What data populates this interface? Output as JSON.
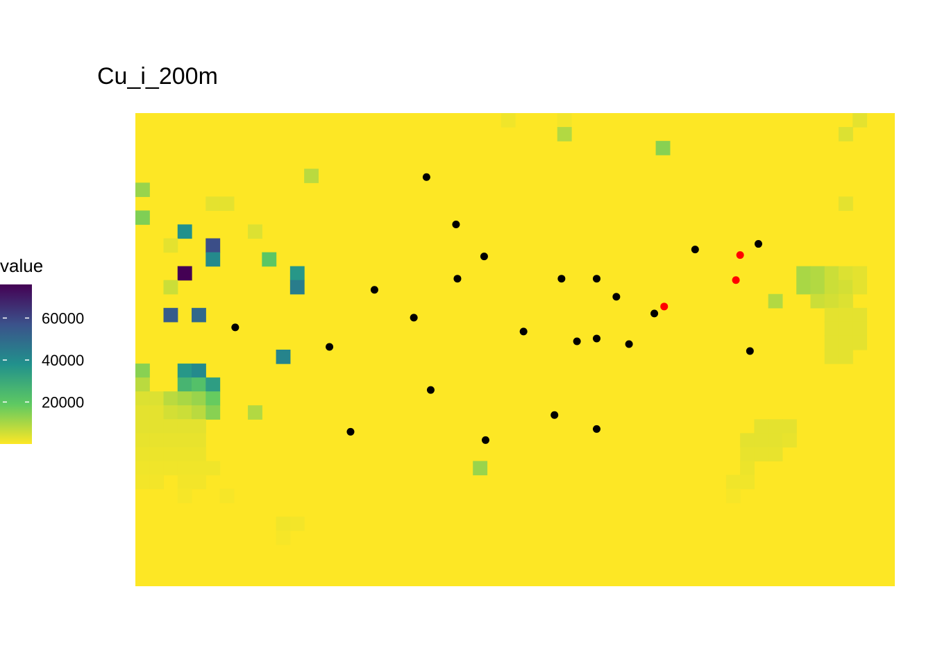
{
  "chart_data": {
    "type": "heatmap",
    "title": "Cu_i_200m",
    "legend": {
      "title": "value",
      "ticks": [
        20000,
        40000,
        60000
      ],
      "tick_labels": [
        "20000",
        "40000",
        "60000"
      ],
      "range": [
        0,
        76000
      ],
      "palette": "viridis-reversed",
      "placement": "left"
    },
    "grid": {
      "cols": 54,
      "rows": 34,
      "background_value": 0
    },
    "cells": [
      [
        26,
        0,
        1500
      ],
      [
        30,
        0,
        1200
      ],
      [
        51,
        0,
        3000
      ],
      [
        30,
        1,
        9000
      ],
      [
        50,
        1,
        4000
      ],
      [
        37,
        2,
        14000
      ],
      [
        12,
        4,
        8000
      ],
      [
        0,
        5,
        12000
      ],
      [
        5,
        6,
        3000
      ],
      [
        6,
        6,
        3000
      ],
      [
        50,
        6,
        3000
      ],
      [
        0,
        7,
        15000
      ],
      [
        3,
        8,
        38000
      ],
      [
        8,
        8,
        4000
      ],
      [
        2,
        9,
        3000
      ],
      [
        5,
        9,
        58000
      ],
      [
        5,
        10,
        40000
      ],
      [
        9,
        10,
        20000
      ],
      [
        3,
        11,
        76000
      ],
      [
        11,
        11,
        36000
      ],
      [
        47,
        11,
        10000
      ],
      [
        48,
        11,
        9000
      ],
      [
        49,
        11,
        6000
      ],
      [
        50,
        11,
        4000
      ],
      [
        51,
        11,
        3000
      ],
      [
        2,
        12,
        6000
      ],
      [
        11,
        12,
        44000
      ],
      [
        47,
        12,
        10000
      ],
      [
        48,
        12,
        9000
      ],
      [
        49,
        12,
        6000
      ],
      [
        50,
        12,
        5000
      ],
      [
        51,
        12,
        3000
      ],
      [
        45,
        13,
        9000
      ],
      [
        48,
        13,
        6000
      ],
      [
        49,
        13,
        5000
      ],
      [
        50,
        13,
        4000
      ],
      [
        2,
        14,
        54000
      ],
      [
        4,
        14,
        50000
      ],
      [
        49,
        14,
        3000
      ],
      [
        50,
        14,
        3000
      ],
      [
        51,
        14,
        3000
      ],
      [
        49,
        15,
        3000
      ],
      [
        50,
        15,
        3000
      ],
      [
        51,
        15,
        3000
      ],
      [
        49,
        16,
        3000
      ],
      [
        50,
        16,
        3000
      ],
      [
        51,
        16,
        3000
      ],
      [
        10,
        17,
        42000
      ],
      [
        49,
        17,
        3000
      ],
      [
        50,
        17,
        3000
      ],
      [
        0,
        18,
        14000
      ],
      [
        3,
        18,
        36000
      ],
      [
        4,
        18,
        40000
      ],
      [
        0,
        19,
        8000
      ],
      [
        3,
        19,
        26000
      ],
      [
        4,
        19,
        22000
      ],
      [
        5,
        19,
        34000
      ],
      [
        0,
        20,
        4000
      ],
      [
        1,
        20,
        4000
      ],
      [
        2,
        20,
        8000
      ],
      [
        3,
        20,
        10000
      ],
      [
        4,
        20,
        12000
      ],
      [
        5,
        20,
        18000
      ],
      [
        0,
        21,
        3000
      ],
      [
        1,
        21,
        3000
      ],
      [
        2,
        21,
        5000
      ],
      [
        3,
        21,
        6000
      ],
      [
        4,
        21,
        8000
      ],
      [
        5,
        21,
        14000
      ],
      [
        8,
        21,
        9000
      ],
      [
        0,
        22,
        3000
      ],
      [
        1,
        22,
        3000
      ],
      [
        2,
        22,
        3000
      ],
      [
        3,
        22,
        3000
      ],
      [
        4,
        22,
        3000
      ],
      [
        44,
        22,
        3000
      ],
      [
        45,
        22,
        3000
      ],
      [
        46,
        22,
        3000
      ],
      [
        0,
        23,
        2500
      ],
      [
        1,
        23,
        2500
      ],
      [
        2,
        23,
        2500
      ],
      [
        3,
        23,
        2500
      ],
      [
        4,
        23,
        2500
      ],
      [
        43,
        23,
        3000
      ],
      [
        44,
        23,
        3000
      ],
      [
        45,
        23,
        3000
      ],
      [
        46,
        23,
        2500
      ],
      [
        0,
        24,
        2000
      ],
      [
        1,
        24,
        2000
      ],
      [
        2,
        24,
        2000
      ],
      [
        3,
        24,
        2000
      ],
      [
        4,
        24,
        2000
      ],
      [
        43,
        24,
        2500
      ],
      [
        44,
        24,
        2500
      ],
      [
        45,
        24,
        2500
      ],
      [
        0,
        25,
        1500
      ],
      [
        1,
        25,
        1500
      ],
      [
        2,
        25,
        1500
      ],
      [
        3,
        25,
        1500
      ],
      [
        4,
        25,
        1500
      ],
      [
        5,
        25,
        1500
      ],
      [
        24,
        25,
        12000
      ],
      [
        43,
        25,
        2000
      ],
      [
        0,
        26,
        1200
      ],
      [
        1,
        26,
        1200
      ],
      [
        3,
        26,
        1200
      ],
      [
        4,
        26,
        1200
      ],
      [
        42,
        26,
        1500
      ],
      [
        43,
        26,
        1500
      ],
      [
        3,
        27,
        800
      ],
      [
        6,
        27,
        800
      ],
      [
        42,
        27,
        800
      ],
      [
        10,
        29,
        1500
      ],
      [
        11,
        29,
        1200
      ],
      [
        10,
        30,
        800
      ]
    ],
    "points": {
      "x": [
        20.7,
        22.8,
        24.8,
        22.9,
        17.0,
        19.8,
        7.1,
        13.8,
        21.0,
        27.6,
        31.4,
        32.8,
        34.2,
        30.3,
        32.8,
        35.1,
        36.9,
        39.8,
        44.3,
        43.7,
        15.3,
        24.9,
        29.8,
        32.8
      ],
      "y": [
        4.6,
        8.0,
        10.3,
        11.9,
        12.7,
        14.7,
        15.4,
        16.8,
        19.9,
        15.7,
        16.4,
        11.9,
        13.2,
        11.9,
        16.2,
        16.6,
        14.4,
        9.8,
        9.4,
        17.1,
        22.9,
        23.5,
        21.7,
        22.7
      ],
      "color": "#000000"
    },
    "highlight_points": {
      "x": [
        37.6,
        43.0,
        42.7
      ],
      "y": [
        13.9,
        10.2,
        12.0
      ],
      "color": "#ff0000"
    }
  }
}
